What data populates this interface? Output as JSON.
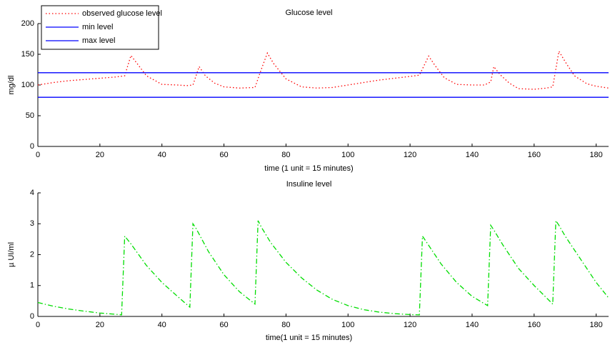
{
  "chart_data": [
    {
      "type": "line",
      "title": "Glucose level",
      "xlabel": "time (1 unit = 15 minutes)",
      "ylabel": "mg/dl",
      "xlim": [
        0,
        184
      ],
      "ylim": [
        0,
        200
      ],
      "xticks": [
        0,
        20,
        40,
        60,
        80,
        100,
        120,
        140,
        160,
        180
      ],
      "yticks": [
        0,
        50,
        100,
        150,
        200
      ],
      "legend": "upper left",
      "series": [
        {
          "name": "observed glucose level",
          "color": "#ff0000",
          "style": "dotted",
          "x": [
            0,
            5,
            10,
            15,
            20,
            25,
            28,
            30,
            32,
            35,
            40,
            45,
            48,
            50,
            52,
            54,
            57,
            60,
            65,
            70,
            72,
            74,
            76,
            80,
            85,
            90,
            95,
            100,
            105,
            110,
            115,
            120,
            123,
            126,
            128,
            131,
            135,
            140,
            144,
            146,
            147,
            149,
            152,
            155,
            160,
            164,
            166,
            168,
            170,
            173,
            177,
            180,
            184
          ],
          "values": [
            100,
            104,
            107,
            109,
            111,
            113,
            115,
            148,
            135,
            115,
            101,
            100,
            99,
            100,
            130,
            115,
            103,
            97,
            95,
            96,
            125,
            152,
            135,
            110,
            97,
            95,
            96,
            100,
            104,
            108,
            111,
            114,
            116,
            147,
            132,
            112,
            101,
            100,
            100,
            105,
            130,
            117,
            103,
            94,
            93,
            95,
            97,
            155,
            138,
            115,
            102,
            98,
            95
          ]
        },
        {
          "name": "min level",
          "color": "#0000ff",
          "style": "solid",
          "x": [
            0,
            184
          ],
          "values": [
            80,
            80
          ]
        },
        {
          "name": "max level",
          "color": "#0000ff",
          "style": "solid",
          "x": [
            0,
            184
          ],
          "values": [
            120,
            120
          ]
        }
      ]
    },
    {
      "type": "line",
      "title": "Insuline level",
      "xlabel": "time(1 unit = 15 minutes)",
      "ylabel": "µ UI/ml",
      "xlim": [
        0,
        184
      ],
      "ylim": [
        0,
        4
      ],
      "xticks": [
        0,
        20,
        40,
        60,
        80,
        100,
        120,
        140,
        160,
        180
      ],
      "yticks": [
        0,
        1,
        2,
        3,
        4
      ],
      "series": [
        {
          "color": "#00dd00",
          "style": "dashdot",
          "x": [
            0,
            5,
            10,
            15,
            20,
            25,
            27,
            28,
            30,
            35,
            40,
            45,
            49,
            50,
            51,
            55,
            60,
            65,
            70,
            71,
            72,
            75,
            80,
            85,
            90,
            95,
            100,
            105,
            110,
            115,
            120,
            123,
            124,
            125,
            130,
            135,
            140,
            145,
            146,
            147,
            150,
            155,
            160,
            166,
            167,
            168,
            170,
            175,
            180,
            184
          ],
          "values": [
            0.45,
            0.33,
            0.24,
            0.17,
            0.11,
            0.07,
            0.05,
            2.6,
            2.35,
            1.65,
            1.1,
            0.65,
            0.3,
            3.0,
            2.85,
            2.1,
            1.35,
            0.8,
            0.4,
            3.1,
            2.9,
            2.4,
            1.75,
            1.25,
            0.85,
            0.55,
            0.35,
            0.22,
            0.14,
            0.09,
            0.06,
            0.05,
            2.6,
            2.45,
            1.7,
            1.1,
            0.65,
            0.35,
            2.95,
            2.8,
            2.3,
            1.55,
            1.0,
            0.4,
            3.1,
            2.95,
            2.6,
            1.85,
            1.1,
            0.6
          ]
        }
      ]
    }
  ]
}
